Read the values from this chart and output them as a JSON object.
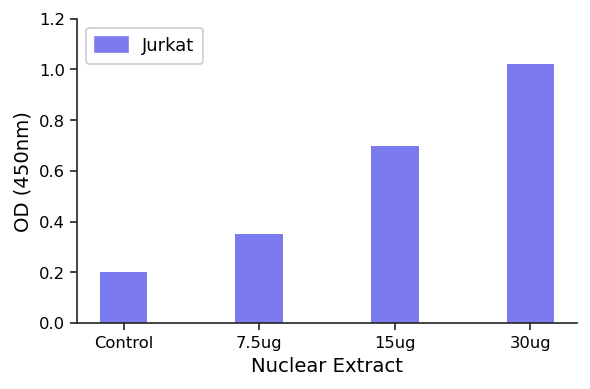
{
  "categories": [
    "Control",
    "7.5ug",
    "15ug",
    "30ug"
  ],
  "values": [
    0.2,
    0.35,
    0.7,
    1.02
  ],
  "bar_color": "#7b7bef",
  "legend_label": "Jurkat",
  "xlabel": "Nuclear Extract",
  "ylabel": "OD (450nm)",
  "ylim": [
    0,
    1.2
  ],
  "yticks": [
    0.0,
    0.2,
    0.4,
    0.6,
    0.8,
    1.0,
    1.2
  ],
  "bar_width": 0.35,
  "label_fontsize": 12,
  "tick_fontsize": 10,
  "legend_fontsize": 11,
  "background_color": "#ffffff"
}
